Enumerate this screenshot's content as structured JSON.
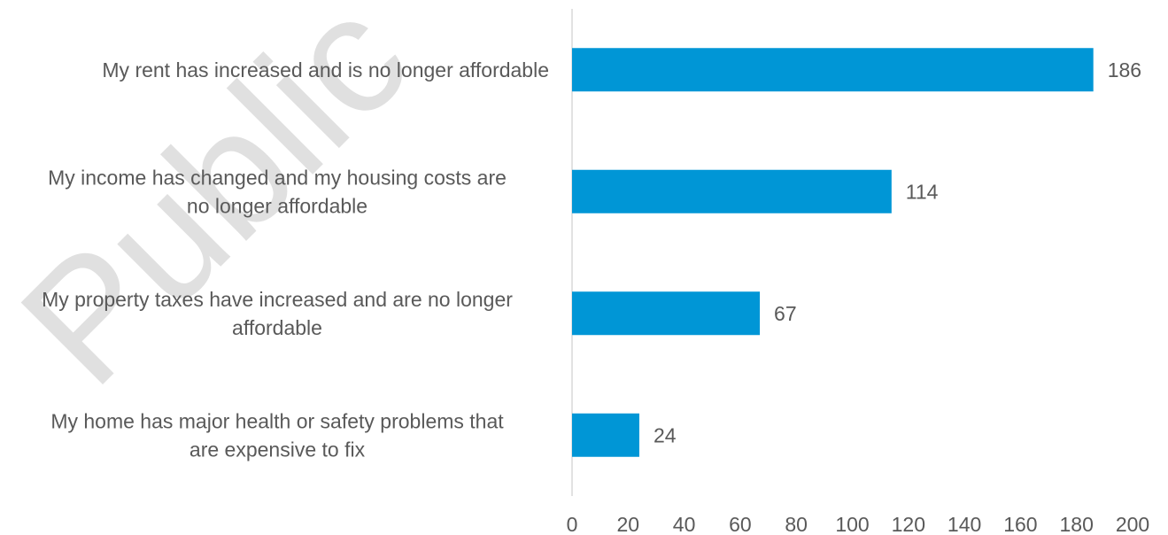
{
  "watermark": "Public",
  "colors": {
    "bar": "#0096D6",
    "axis": "#D9D9D9",
    "text": "#595959"
  },
  "chart_data": {
    "type": "bar",
    "orientation": "horizontal",
    "categories": [
      "My rent has increased and is no longer affordable",
      "My income has changed and my housing costs are no longer affordable",
      "My property taxes have increased and are no longer affordable",
      "My home has major health or safety problems that are expensive to fix"
    ],
    "category_lines": [
      [
        "My rent has increased and is no longer affordable"
      ],
      [
        "My income has changed and my housing costs are",
        "no longer affordable"
      ],
      [
        "My property taxes have increased and are no longer",
        "affordable"
      ],
      [
        "My home has major health or safety problems that",
        "are expensive to fix"
      ]
    ],
    "values": [
      186,
      114,
      67,
      24
    ],
    "xlim": [
      0,
      200
    ],
    "xticks": [
      0,
      20,
      40,
      60,
      80,
      100,
      120,
      140,
      160,
      180,
      200
    ],
    "title": "",
    "xlabel": "",
    "ylabel": "",
    "grid": false,
    "legend": "none"
  }
}
